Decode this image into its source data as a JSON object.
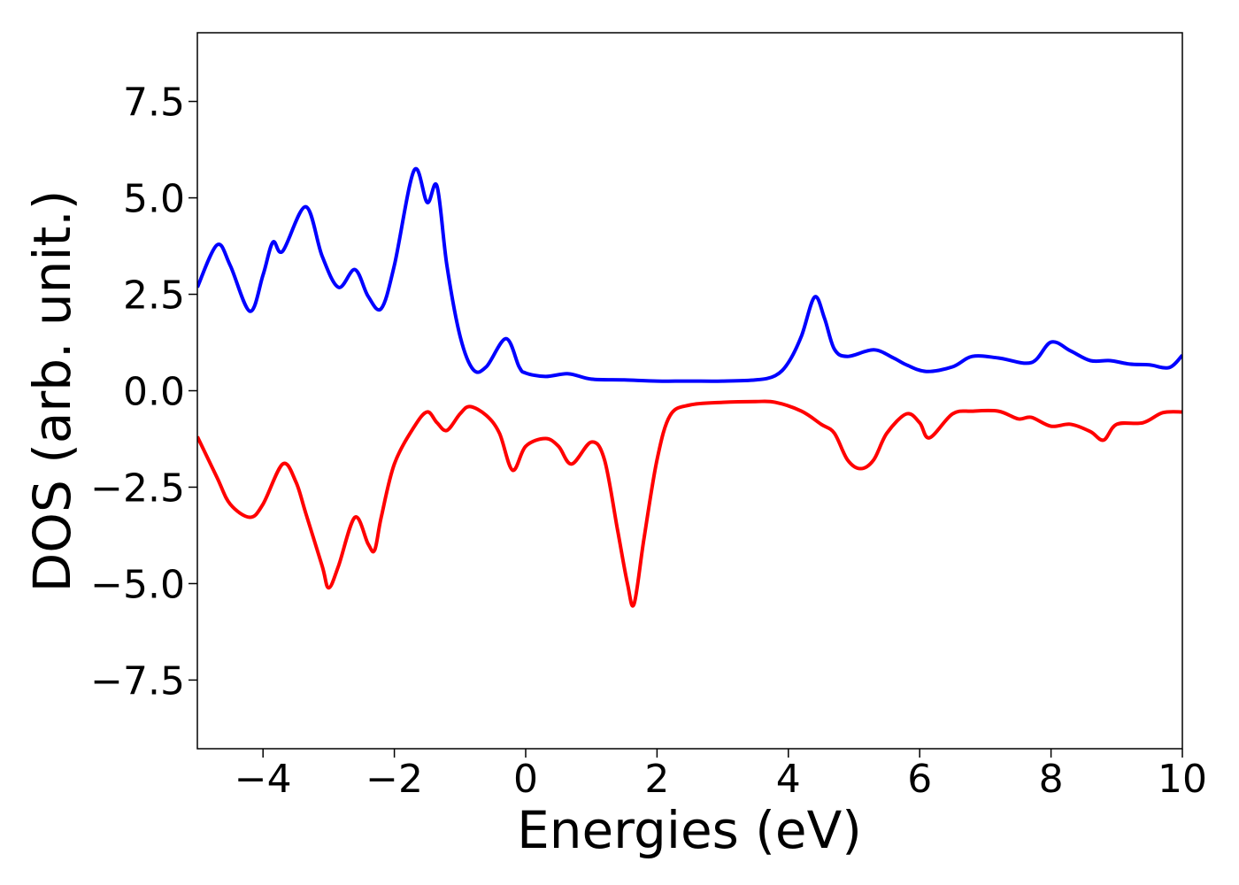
{
  "chart_data": {
    "type": "line",
    "xlabel": "Energies (eV)",
    "ylabel": "DOS (arb. unit.)",
    "xlim": [
      -5,
      10
    ],
    "ylim": [
      -9.28,
      9.28
    ],
    "xticks": [
      {
        "value": -4,
        "label": "−4"
      },
      {
        "value": -2,
        "label": "−2"
      },
      0,
      2,
      4,
      6,
      8,
      10
    ],
    "yticks": [
      {
        "value": -7.5,
        "label": "−7.5"
      },
      {
        "value": -5,
        "label": "−5.0"
      },
      {
        "value": -2.5,
        "label": "−2.5"
      },
      {
        "value": 0,
        "label": "0.0"
      },
      2.5,
      {
        "value": 5,
        "label": "5.0"
      },
      7.5
    ],
    "grid": false,
    "series": [
      {
        "color": "#0000ff",
        "x": [
          -5,
          -4.7,
          -4.5,
          -4.2,
          -4.0,
          -3.85,
          -3.7,
          -3.35,
          -3.1,
          -2.85,
          -2.6,
          -2.4,
          -2.2,
          -2.0,
          -1.7,
          -1.5,
          -1.35,
          -1.2,
          -1.0,
          -0.8,
          -0.6,
          -0.3,
          -0.1,
          0.0,
          0.3,
          0.65,
          1.0,
          1.5,
          2.0,
          2.5,
          3.0,
          3.5,
          3.8,
          4.0,
          4.2,
          4.4,
          4.55,
          4.7,
          4.9,
          5.3,
          5.6,
          5.8,
          6.1,
          6.5,
          6.8,
          7.2,
          7.7,
          8.0,
          8.3,
          8.6,
          8.9,
          9.2,
          9.5,
          9.8,
          10.0
        ],
        "values": [
          2.68,
          3.78,
          3.25,
          2.06,
          3.0,
          3.85,
          3.62,
          4.77,
          3.49,
          2.68,
          3.14,
          2.45,
          2.13,
          3.25,
          5.71,
          4.88,
          5.3,
          3.25,
          1.42,
          0.55,
          0.62,
          1.35,
          0.62,
          0.46,
          0.37,
          0.44,
          0.3,
          0.28,
          0.25,
          0.25,
          0.25,
          0.28,
          0.39,
          0.73,
          1.42,
          2.43,
          1.88,
          1.08,
          0.89,
          1.06,
          0.85,
          0.67,
          0.5,
          0.62,
          0.89,
          0.85,
          0.73,
          1.26,
          1.03,
          0.78,
          0.78,
          0.69,
          0.67,
          0.6,
          0.92
        ]
      },
      {
        "color": "#ff0000",
        "x": [
          -5,
          -4.7,
          -4.5,
          -4.2,
          -4.0,
          -3.7,
          -3.5,
          -3.35,
          -3.1,
          -3.0,
          -2.85,
          -2.6,
          -2.4,
          -2.3,
          -2.2,
          -2.0,
          -1.7,
          -1.5,
          -1.35,
          -1.2,
          -1.0,
          -0.85,
          -0.6,
          -0.4,
          -0.2,
          0.0,
          0.3,
          0.5,
          0.7,
          1.0,
          1.2,
          1.4,
          1.55,
          1.65,
          1.8,
          2.0,
          2.2,
          2.5,
          3.0,
          3.5,
          3.8,
          4.2,
          4.5,
          4.7,
          4.9,
          5.1,
          5.3,
          5.5,
          5.8,
          6.0,
          6.15,
          6.5,
          6.8,
          7.2,
          7.5,
          7.7,
          8.0,
          8.3,
          8.6,
          8.8,
          9.0,
          9.4,
          9.7,
          10.0
        ],
        "values": [
          -1.19,
          -2.25,
          -2.94,
          -3.28,
          -2.94,
          -1.9,
          -2.36,
          -3.17,
          -4.54,
          -5.11,
          -4.54,
          -3.28,
          -3.97,
          -4.13,
          -3.28,
          -1.9,
          -0.94,
          -0.55,
          -0.83,
          -1.03,
          -0.6,
          -0.41,
          -0.64,
          -1.1,
          -2.06,
          -1.44,
          -1.24,
          -1.44,
          -1.9,
          -1.33,
          -1.79,
          -3.62,
          -5.0,
          -5.53,
          -3.85,
          -1.79,
          -0.64,
          -0.37,
          -0.3,
          -0.28,
          -0.3,
          -0.53,
          -0.87,
          -1.1,
          -1.79,
          -2.02,
          -1.79,
          -1.1,
          -0.6,
          -0.83,
          -1.22,
          -0.6,
          -0.53,
          -0.53,
          -0.73,
          -0.69,
          -0.92,
          -0.87,
          -1.06,
          -1.28,
          -0.87,
          -0.83,
          -0.57,
          -0.55
        ]
      }
    ]
  }
}
